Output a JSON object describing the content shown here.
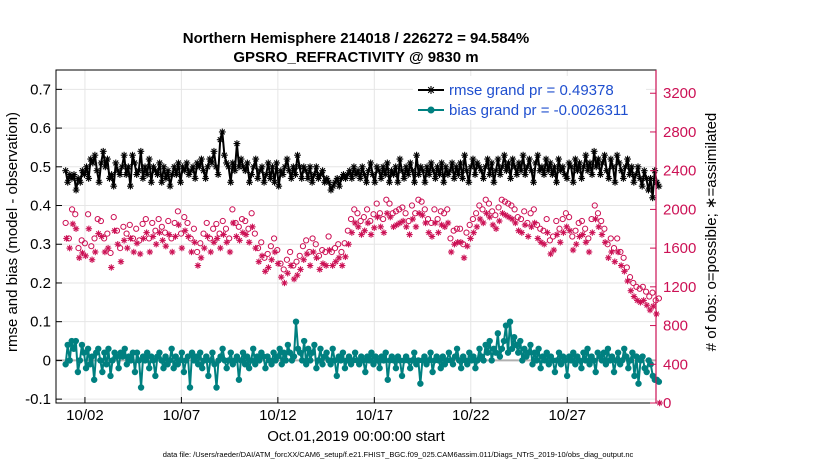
{
  "chart_data": {
    "type": "line",
    "title": "Northern Hemisphere 214018 / 226272 = 94.584%",
    "subtitle": "GPSRO_REFRACTIVITY @ 9830 m",
    "xlabel": "Oct.01,2019 00:00:00 start",
    "ylabel": "rmse and bias (model - observation)",
    "y2label": "# of obs: o=possible; ∗=assimilated",
    "footer": "data file: /Users/raeder/DAI/ATM_forcXX/CAM6_setup/f.e21.FHIST_BGC.f09_025.CAM6assim.011/Diags_NTrS_2019-10/obs_diag_output.nc",
    "xlim": [
      0.5,
      31.6
    ],
    "ylim": [
      -0.11,
      0.75
    ],
    "y2lim": [
      0,
      3440
    ],
    "x_ticks": [
      2,
      7,
      12,
      17,
      22,
      27,
      32
    ],
    "x_tick_labels": [
      "10/02",
      "10/07",
      "10/12",
      "10/17",
      "10/22",
      "10/27",
      "11/01"
    ],
    "y_ticks": [
      -0.1,
      0,
      0.1,
      0.2,
      0.3,
      0.4,
      0.5,
      0.6,
      0.7
    ],
    "y_tick_labels": [
      "-0.1",
      "0",
      "0.1",
      "0.2",
      "0.3",
      "0.4",
      "0.5",
      "0.6",
      "0.7"
    ],
    "y2_ticks": [
      0,
      400,
      800,
      1200,
      1600,
      2000,
      2400,
      2800,
      3200
    ],
    "y2_tick_labels": [
      "0",
      "400",
      "800",
      "1200",
      "1600",
      "2000",
      "2400",
      "2800",
      "3200"
    ],
    "zero_line": 0,
    "grid": true,
    "legend_position": "top-right",
    "colors": {
      "rmse": "#000000",
      "bias": "#008080",
      "counts": "#cc1155",
      "legend_text": "#1f4fcf",
      "zero": "#b0b0b0",
      "grid": "#e6e6e6"
    },
    "series": [
      {
        "name": "rmse grand pr = 0.49378",
        "key": "rmse",
        "values": [
          0.49,
          0.46,
          0.48,
          0.47,
          0.48,
          0.44,
          0.47,
          0.46,
          0.49,
          0.48,
          0.5,
          0.47,
          0.52,
          0.51,
          0.53,
          0.49,
          0.46,
          0.51,
          0.54,
          0.5,
          0.52,
          0.47,
          0.48,
          0.45,
          0.51,
          0.49,
          0.48,
          0.5,
          0.53,
          0.48,
          0.5,
          0.45,
          0.53,
          0.51,
          0.48,
          0.49,
          0.54,
          0.47,
          0.5,
          0.48,
          0.52,
          0.46,
          0.5,
          0.49,
          0.48,
          0.51,
          0.46,
          0.5,
          0.47,
          0.49,
          0.45,
          0.48,
          0.5,
          0.48,
          0.51,
          0.46,
          0.5,
          0.49,
          0.51,
          0.48,
          0.49,
          0.5,
          0.47,
          0.51,
          0.5,
          0.52,
          0.49,
          0.47,
          0.5,
          0.52,
          0.51,
          0.54,
          0.5,
          0.48,
          0.57,
          0.59,
          0.53,
          0.51,
          0.5,
          0.46,
          0.51,
          0.49,
          0.56,
          0.5,
          0.52,
          0.5,
          0.49,
          0.51,
          0.46,
          0.48,
          0.5,
          0.52,
          0.47,
          0.49,
          0.5,
          0.46,
          0.48,
          0.51,
          0.47,
          0.5,
          0.46,
          0.51,
          0.45,
          0.49,
          0.48,
          0.5,
          0.52,
          0.49,
          0.47,
          0.5,
          0.48,
          0.53,
          0.5,
          0.47,
          0.5,
          0.49,
          0.47,
          0.5,
          0.46,
          0.48,
          0.5,
          0.47,
          0.48,
          0.49,
          0.46,
          0.47,
          0.46,
          0.44,
          0.45,
          0.46,
          0.47,
          0.45,
          0.47,
          0.48,
          0.47,
          0.48,
          0.49,
          0.47,
          0.5,
          0.48,
          0.49,
          0.47,
          0.5,
          0.48,
          0.46,
          0.49,
          0.51,
          0.48,
          0.46,
          0.5,
          0.49,
          0.47,
          0.5,
          0.48,
          0.51,
          0.46,
          0.49,
          0.48,
          0.5,
          0.46,
          0.52,
          0.49,
          0.47,
          0.5,
          0.48,
          0.51,
          0.49,
          0.46,
          0.53,
          0.48,
          0.5,
          0.49,
          0.46,
          0.5,
          0.48,
          0.51,
          0.49,
          0.47,
          0.5,
          0.48,
          0.51,
          0.46,
          0.5,
          0.48,
          0.49,
          0.51,
          0.47,
          0.5,
          0.48,
          0.51,
          0.47,
          0.53,
          0.49,
          0.46,
          0.5,
          0.52,
          0.48,
          0.51,
          0.5,
          0.49,
          0.47,
          0.5,
          0.52,
          0.48,
          0.51,
          0.46,
          0.49,
          0.52,
          0.48,
          0.5,
          0.53,
          0.49,
          0.51,
          0.47,
          0.52,
          0.5,
          0.48,
          0.51,
          0.49,
          0.53,
          0.48,
          0.5,
          0.52,
          0.49,
          0.46,
          0.51,
          0.53,
          0.49,
          0.5,
          0.48,
          0.52,
          0.49,
          0.51,
          0.48,
          0.5,
          0.46,
          0.52,
          0.49,
          0.5,
          0.48,
          0.47,
          0.51,
          0.5,
          0.46,
          0.52,
          0.49,
          0.51,
          0.47,
          0.5,
          0.53,
          0.49,
          0.51,
          0.48,
          0.54,
          0.5,
          0.52,
          0.48,
          0.51,
          0.53,
          0.49,
          0.47,
          0.52,
          0.5,
          0.46,
          0.53,
          0.51,
          0.49,
          0.47,
          0.5,
          0.52,
          0.48,
          0.5,
          0.46,
          0.48,
          0.5,
          0.47,
          0.45,
          0.49,
          0.47,
          0.44,
          0.47,
          0.42,
          0.49,
          0.46,
          0.45
        ]
      },
      {
        "name": "bias grand pr = -0.0026311",
        "key": "bias",
        "values": [
          -0.01,
          0.04,
          0.0,
          0.05,
          0.03,
          0.05,
          -0.03,
          0.0,
          0.04,
          0.02,
          -0.02,
          0.03,
          -0.01,
          0.01,
          -0.05,
          0.02,
          0.03,
          0.0,
          -0.03,
          0.02,
          -0.01,
          0.03,
          -0.04,
          0.0,
          0.02,
          0.01,
          -0.02,
          0.02,
          0.01,
          0.03,
          -0.01,
          0.01,
          0.0,
          0.02,
          -0.03,
          0.02,
          0.0,
          -0.07,
          0.01,
          0.0,
          0.02,
          -0.02,
          0.01,
          0.0,
          -0.04,
          0.01,
          0.02,
          0.0,
          -0.02,
          0.01,
          -0.01,
          0.0,
          0.03,
          -0.02,
          0.01,
          -0.01,
          0.0,
          0.02,
          -0.03,
          0.0,
          0.01,
          -0.07,
          0.02,
          0.0,
          0.01,
          -0.01,
          0.02,
          -0.02,
          0.0,
          0.01,
          -0.04,
          0.0,
          0.02,
          -0.01,
          -0.07,
          0.0,
          0.01,
          0.03,
          0.0,
          -0.02,
          0.0,
          0.02,
          -0.01,
          0.0,
          0.01,
          -0.05,
          0.0,
          0.02,
          -0.01,
          0.01,
          -0.02,
          0.0,
          0.03,
          -0.01,
          0.01,
          0.0,
          0.02,
          0.01,
          -0.02,
          0.01,
          0.0,
          -0.01,
          0.02,
          0.0,
          0.01,
          0.03,
          -0.01,
          0.02,
          0.0,
          0.04,
          0.02,
          0.0,
          0.01,
          0.1,
          0.03,
          0.02,
          0.0,
          0.05,
          -0.01,
          0.03,
          0.0,
          0.02,
          0.04,
          -0.02,
          0.0,
          0.03,
          -0.01,
          0.01,
          0.02,
          0.0,
          -0.01,
          0.03,
          0.0,
          -0.04,
          0.01,
          0.0,
          0.02,
          -0.02,
          0.0,
          0.01,
          -0.01,
          0.0,
          0.02,
          0.0,
          -0.01,
          0.01,
          0.0,
          -0.03,
          0.01,
          0.0,
          0.02,
          -0.01,
          0.01,
          0.0,
          -0.02,
          0.01,
          0.0,
          0.02,
          -0.05,
          0.0,
          0.01,
          0.0,
          -0.02,
          0.01,
          0.0,
          -0.04,
          0.0,
          0.01,
          0.0,
          -0.02,
          0.0,
          0.02,
          -0.01,
          0.0,
          -0.06,
          0.0,
          0.01,
          -0.01,
          0.0,
          0.02,
          -0.03,
          0.0,
          0.01,
          0.0,
          -0.02,
          0.01,
          -0.01,
          0.0,
          0.02,
          0.0,
          -0.01,
          0.01,
          0.03,
          0.0,
          -0.02,
          0.01,
          0.0,
          -0.01,
          0.02,
          0.0,
          0.01,
          -0.02,
          0.0,
          0.03,
          0.01,
          0.0,
          0.04,
          0.02,
          0.05,
          0.0,
          0.03,
          0.02,
          0.07,
          0.01,
          0.03,
          0.05,
          0.09,
          0.02,
          0.1,
          0.03,
          0.06,
          0.04,
          0.02,
          0.05,
          0.0,
          0.03,
          0.01,
          0.02,
          0.04,
          -0.01,
          0.02,
          0.0,
          0.03,
          -0.02,
          0.01,
          0.0,
          0.02,
          -0.01,
          0.01,
          0.0,
          -0.03,
          0.0,
          0.02,
          -0.01,
          0.01,
          0.0,
          -0.04,
          0.01,
          0.0,
          0.02,
          -0.01,
          0.01,
          0.0,
          -0.02,
          0.02,
          0.0,
          0.03,
          -0.01,
          0.01,
          0.0,
          -0.03,
          0.02,
          0.01,
          0.0,
          0.02,
          -0.01,
          0.03,
          0.0,
          0.01,
          -0.03,
          0.0,
          0.02,
          -0.01,
          0.0,
          0.03,
          0.01,
          -0.02,
          0.0,
          0.02,
          -0.04,
          0.01,
          -0.06,
          0.0,
          0.01,
          -0.02,
          -0.03,
          0.0,
          -0.01,
          -0.04,
          -0.05,
          -0.05,
          -0.055
        ]
      },
      {
        "name": "possible",
        "key": "possible",
        "axis": "right",
        "marker": "o",
        "values": [
          1860,
          1700,
          2000,
          1950,
          1600,
          1680,
          1650,
          1950,
          1620,
          1700,
          1900,
          1880,
          1700,
          1750,
          1550,
          1920,
          1780,
          1600,
          1820,
          1750,
          1840,
          1700,
          1800,
          1680,
          1850,
          1900,
          1700,
          1860,
          1780,
          1900,
          1820,
          1760,
          1880,
          1700,
          1860,
          1980,
          1750,
          1920,
          1860,
          1700,
          1800,
          1560,
          1650,
          1750,
          1860,
          1700,
          1800,
          1850,
          1750,
          1880,
          1800,
          1700,
          2000,
          1860,
          1820,
          1900,
          1880,
          1800,
          1960,
          1750,
          1600,
          1660,
          1500,
          1540,
          1620,
          1700,
          1580,
          1440,
          1380,
          1480,
          1560,
          1420,
          1460,
          1520,
          1620,
          1680,
          1560,
          1700,
          1640,
          1520,
          1580,
          1560,
          1720,
          1560,
          1600,
          1640,
          1560,
          1650,
          1780,
          1900,
          2000,
          1960,
          1880,
          1920,
          2000,
          1880,
          1950,
          2060,
          1960,
          1900,
          2100,
          2060,
          1960,
          1980,
          2000,
          2020,
          1960,
          1880,
          2040,
          1960,
          2100,
          2080,
          2000,
          1900,
          1860,
          2000,
          1900,
          1980,
          1960,
          2000,
          1700,
          1780,
          1800,
          1800,
          1640,
          1760,
          1840,
          1900,
          1960,
          2040,
          2000,
          2100,
          2060,
          1980,
          1940,
          2020,
          2100,
          2080,
          2060,
          2040,
          2000,
          1920,
          1900,
          1980,
          1860,
          1960,
          2000,
          1840,
          1800,
          1780,
          1900,
          1680,
          1720,
          1880,
          1800,
          1900,
          1960,
          1920,
          1720,
          1780,
          1860,
          1880,
          1800,
          1700,
          1900,
          2040,
          1960,
          1880,
          1800,
          1640,
          1700,
          1600,
          1700,
          1560,
          1500,
          1400,
          1300,
          1240,
          1200,
          1180,
          1200,
          1150,
          1100,
          1140,
          1060,
          1080
        ]
      },
      {
        "name": "assimilated",
        "key": "assimilated",
        "axis": "right",
        "marker": "*",
        "values": [
          1700,
          1600,
          1850,
          1800,
          1500,
          1550,
          1520,
          1800,
          1480,
          1560,
          1750,
          1720,
          1560,
          1600,
          1400,
          1780,
          1640,
          1460,
          1680,
          1600,
          1700,
          1560,
          1650,
          1540,
          1700,
          1760,
          1560,
          1720,
          1640,
          1760,
          1680,
          1620,
          1740,
          1560,
          1720,
          1840,
          1600,
          1780,
          1720,
          1560,
          1660,
          1420,
          1500,
          1600,
          1720,
          1560,
          1660,
          1700,
          1600,
          1740,
          1660,
          1560,
          1860,
          1720,
          1680,
          1760,
          1740,
          1660,
          1820,
          1600,
          1460,
          1520,
          1360,
          1400,
          1480,
          1560,
          1440,
          1300,
          1240,
          1340,
          1420,
          1280,
          1320,
          1380,
          1480,
          1540,
          1420,
          1560,
          1500,
          1380,
          1440,
          1420,
          1580,
          1420,
          1460,
          1500,
          1420,
          1510,
          1640,
          1760,
          1860,
          1820,
          1740,
          1780,
          1860,
          1740,
          1810,
          1920,
          1820,
          1760,
          1960,
          1920,
          1820,
          1840,
          1860,
          1880,
          1820,
          1740,
          1900,
          1820,
          1960,
          1940,
          1860,
          1760,
          1720,
          1860,
          1760,
          1840,
          1820,
          1860,
          1560,
          1640,
          1660,
          1660,
          1500,
          1620,
          1700,
          1760,
          1820,
          1900,
          1860,
          1960,
          1920,
          1840,
          1800,
          1880,
          1960,
          1940,
          1920,
          1900,
          1860,
          1780,
          1760,
          1840,
          1720,
          1820,
          1860,
          1700,
          1660,
          1640,
          1760,
          1540,
          1580,
          1740,
          1660,
          1760,
          1820,
          1780,
          1580,
          1640,
          1720,
          1740,
          1660,
          1560,
          1760,
          1900,
          1820,
          1740,
          1660,
          1500,
          1560,
          1460,
          1560,
          1420,
          1360,
          1260,
          1160,
          1100,
          1060,
          1040,
          1060,
          1010,
          960,
          1000,
          920,
          0
        ]
      }
    ]
  }
}
